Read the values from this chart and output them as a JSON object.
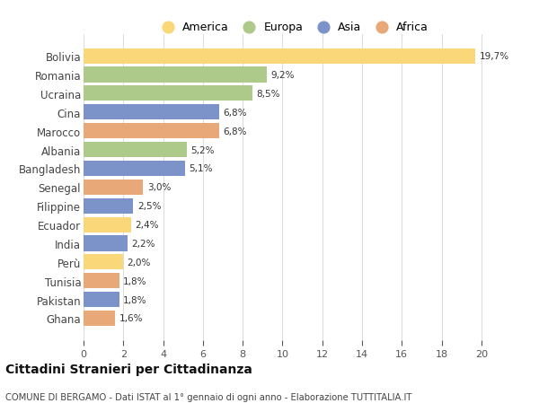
{
  "countries": [
    "Bolivia",
    "Romania",
    "Ucraina",
    "Cina",
    "Marocco",
    "Albania",
    "Bangladesh",
    "Senegal",
    "Filippine",
    "Ecuador",
    "India",
    "Perù",
    "Tunisia",
    "Pakistan",
    "Ghana"
  ],
  "values": [
    19.7,
    9.2,
    8.5,
    6.8,
    6.8,
    5.2,
    5.1,
    3.0,
    2.5,
    2.4,
    2.2,
    2.0,
    1.8,
    1.8,
    1.6
  ],
  "labels": [
    "19,7%",
    "9,2%",
    "8,5%",
    "6,8%",
    "6,8%",
    "5,2%",
    "5,1%",
    "3,0%",
    "2,5%",
    "2,4%",
    "2,2%",
    "2,0%",
    "1,8%",
    "1,8%",
    "1,6%"
  ],
  "continents": [
    "America",
    "Europa",
    "Europa",
    "Asia",
    "Africa",
    "Europa",
    "Asia",
    "Africa",
    "Asia",
    "America",
    "Asia",
    "America",
    "Africa",
    "Asia",
    "Africa"
  ],
  "continent_colors": {
    "America": "#FAD87A",
    "Europa": "#AECA8A",
    "Asia": "#7B93C8",
    "Africa": "#E8A878"
  },
  "legend_order": [
    "America",
    "Europa",
    "Asia",
    "Africa"
  ],
  "xlim": [
    0,
    21
  ],
  "xticks": [
    0,
    2,
    4,
    6,
    8,
    10,
    12,
    14,
    16,
    18,
    20
  ],
  "title": "Cittadini Stranieri per Cittadinanza",
  "subtitle": "COMUNE DI BERGAMO - Dati ISTAT al 1° gennaio di ogni anno - Elaborazione TUTTITALIA.IT",
  "bg_color": "#FFFFFF",
  "grid_color": "#DDDDDD",
  "bar_height": 0.82
}
